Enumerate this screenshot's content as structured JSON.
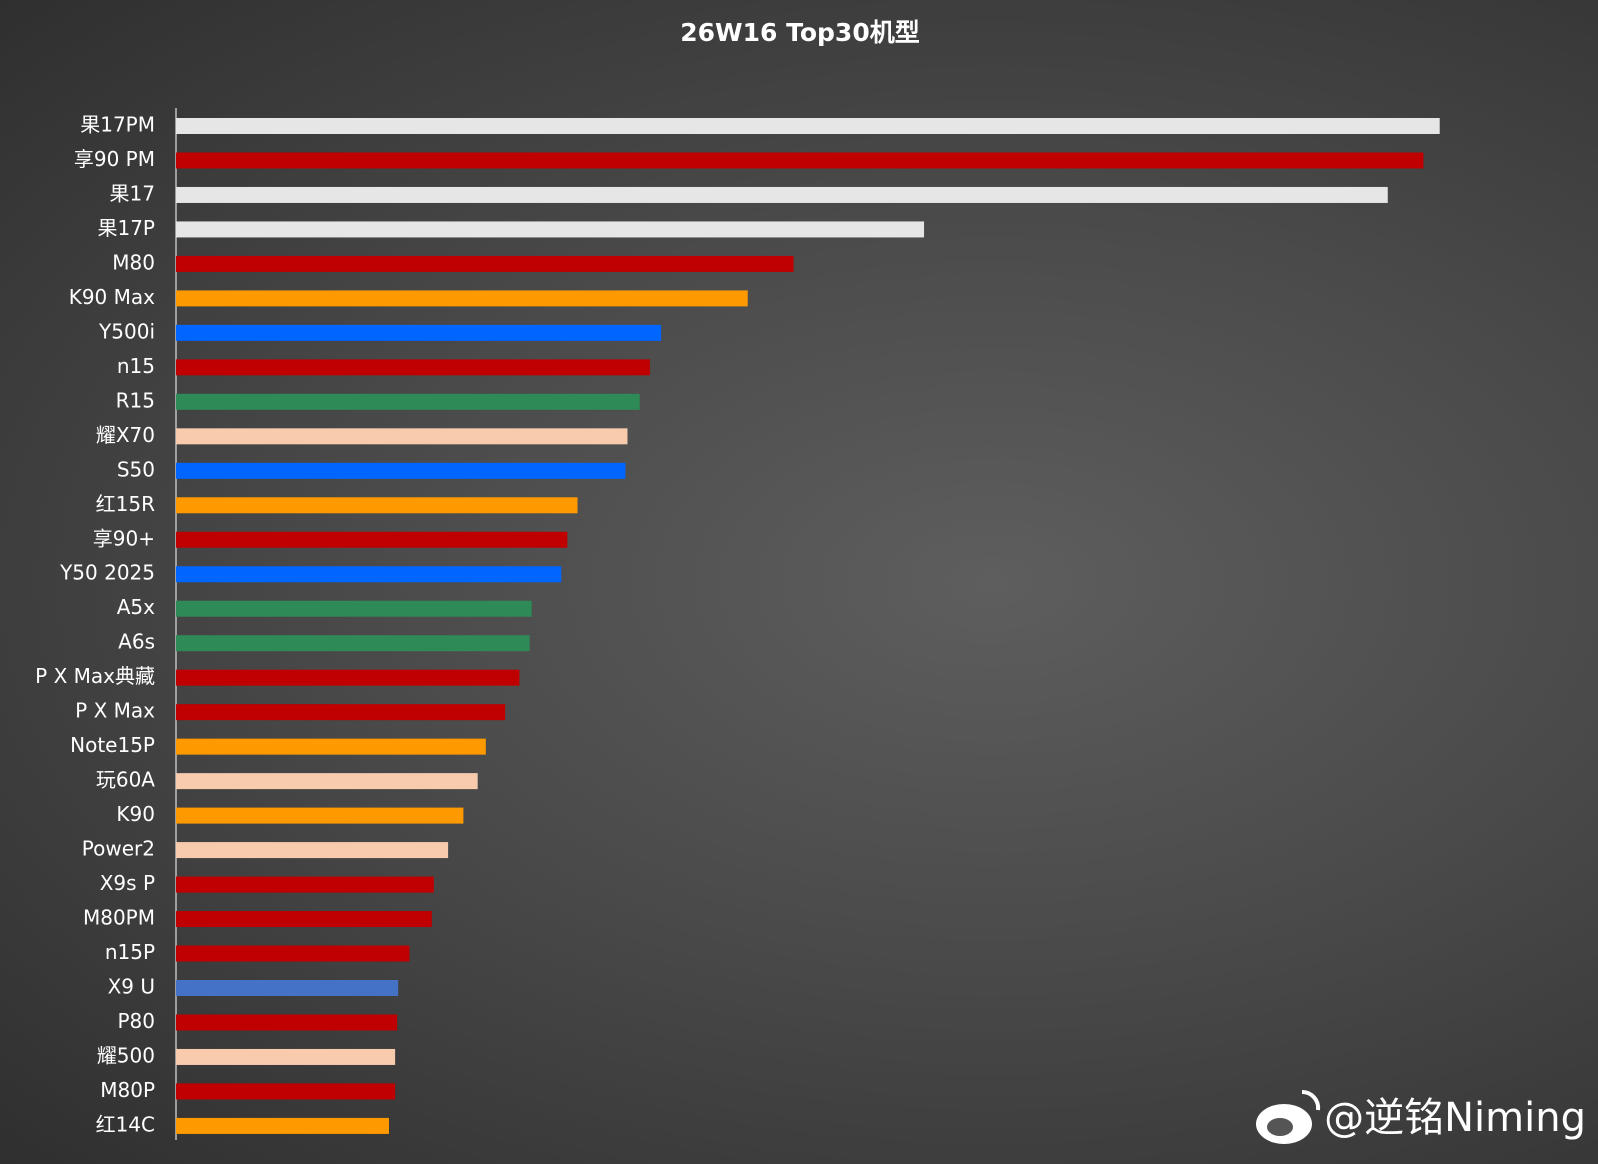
{
  "chart_data": {
    "type": "bar",
    "orientation": "horizontal",
    "title": "26W16 Top30机型",
    "categories": [
      "果17PM",
      "享90 PM",
      "果17",
      "果17P",
      "M80",
      "K90 Max",
      "Y500i",
      "n15",
      "R15",
      "耀X70",
      "S50",
      "红15R",
      "享90+",
      "Y50 2025",
      "A5x",
      "A6s",
      "P X Max典藏",
      "P X Max",
      "Note15P",
      "玩60A",
      "K90",
      "Power2",
      "X9s P",
      "M80PM",
      "n15P",
      "X9 U",
      "P80",
      "耀500",
      "M80P",
      "红14C"
    ],
    "values": [
      1240,
      1224,
      1189,
      734,
      606,
      561,
      476,
      465,
      455,
      443,
      441,
      394,
      384,
      378,
      349,
      347,
      337,
      323,
      304,
      296,
      282,
      267,
      253,
      251,
      229,
      218,
      217,
      215,
      215,
      209
    ],
    "colors": [
      "#e6e6e6",
      "#c00000",
      "#e6e6e6",
      "#e6e6e6",
      "#c00000",
      "#ff9900",
      "#0066ff",
      "#c00000",
      "#2e8b57",
      "#f8cbad",
      "#0066ff",
      "#ff9900",
      "#c00000",
      "#0066ff",
      "#2e8b57",
      "#2e8b57",
      "#c00000",
      "#c00000",
      "#ff9900",
      "#f8cbad",
      "#ff9900",
      "#f8cbad",
      "#c00000",
      "#c00000",
      "#c00000",
      "#4472c4",
      "#c00000",
      "#f8cbad",
      "#c00000",
      "#ff9900"
    ],
    "watermark": "@逆铭Niming"
  }
}
